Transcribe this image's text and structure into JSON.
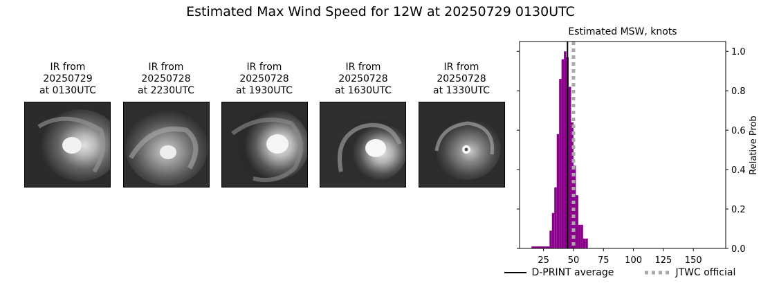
{
  "title": "Estimated Max Wind Speed for 12W at 20250729 0130UTC",
  "panels": [
    {
      "line1": "IR from",
      "line2": "20250729",
      "line3": "at 0130UTC"
    },
    {
      "line1": "IR from",
      "line2": "20250728",
      "line3": "at 2230UTC"
    },
    {
      "line1": "IR from",
      "line2": "20250728",
      "line3": "at 1930UTC"
    },
    {
      "line1": "IR from",
      "line2": "20250728",
      "line3": "at 1630UTC"
    },
    {
      "line1": "IR from",
      "line2": "20250728",
      "line3": "at 1330UTC"
    }
  ],
  "chart_data": {
    "type": "bar",
    "title": "Estimated MSW, knots",
    "xlabel": "",
    "ylabel": "Relative Prob",
    "xlim": [
      5,
      177
    ],
    "ylim": [
      0,
      1.05
    ],
    "xticks": [
      25,
      50,
      75,
      100,
      125,
      150
    ],
    "yticks": [
      0.0,
      0.2,
      0.4,
      0.6,
      0.8,
      1.0
    ],
    "y_axis_side": "right",
    "bar_color": "#8b008b",
    "bins": [
      {
        "x0": 15,
        "x1": 30,
        "value": 0.01
      },
      {
        "x0": 30,
        "x1": 32,
        "value": 0.09
      },
      {
        "x0": 32,
        "x1": 34,
        "value": 0.18
      },
      {
        "x0": 34,
        "x1": 36,
        "value": 0.31
      },
      {
        "x0": 36,
        "x1": 38,
        "value": 0.58
      },
      {
        "x0": 38,
        "x1": 40,
        "value": 0.86
      },
      {
        "x0": 40,
        "x1": 42,
        "value": 0.96
      },
      {
        "x0": 42,
        "x1": 44,
        "value": 1.0
      },
      {
        "x0": 44,
        "x1": 46,
        "value": 0.97
      },
      {
        "x0": 46,
        "x1": 48,
        "value": 0.82
      },
      {
        "x0": 48,
        "x1": 50,
        "value": 0.64
      },
      {
        "x0": 50,
        "x1": 52,
        "value": 0.42
      },
      {
        "x0": 52,
        "x1": 54,
        "value": 0.27
      },
      {
        "x0": 54,
        "x1": 56,
        "value": 0.12
      },
      {
        "x0": 56,
        "x1": 58,
        "value": 0.12
      },
      {
        "x0": 58,
        "x1": 60,
        "value": 0.05
      },
      {
        "x0": 60,
        "x1": 62,
        "value": 0.05
      }
    ],
    "lines": [
      {
        "name": "D-PRINT average",
        "x": 45,
        "color": "#000000",
        "style": "solid"
      },
      {
        "name": "JTWC official",
        "x": 50,
        "color": "#a9a9a9",
        "style": "dotted"
      }
    ],
    "legend_position": "bottom"
  }
}
